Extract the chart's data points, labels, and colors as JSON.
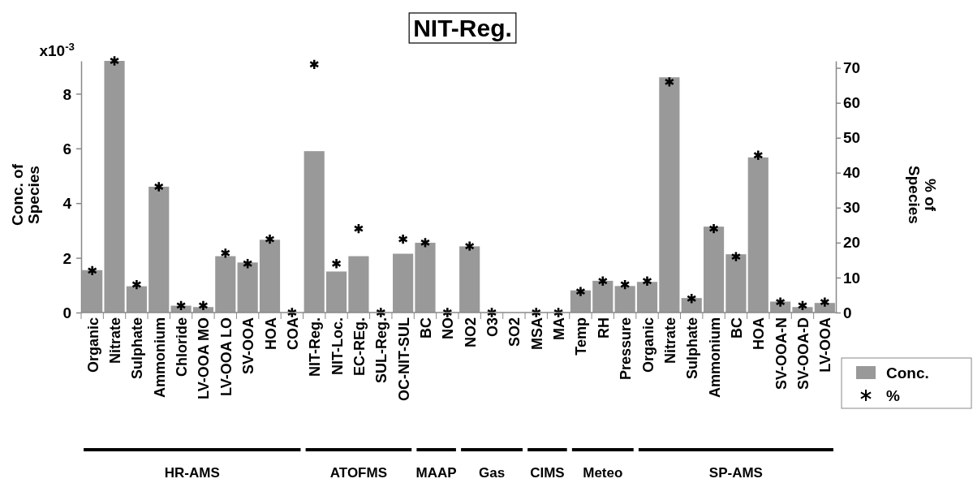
{
  "chart_data": {
    "type": "bar",
    "title": "NIT-Reg.",
    "ylabel": "Conc. of\nSpecies",
    "y2label": "% of\nSpecies",
    "categories": [
      "Organic",
      "Nitrate",
      "Sulphate",
      "Ammonium",
      "Chloride",
      "LV-OOA MO",
      "LV-OOA LO",
      "SV-OOA",
      "HOA",
      "COA",
      "NIT-Reg.",
      "NIT-Loc.",
      "EC-REg.",
      "SUL-Reg.",
      "OC-NIT-SUL",
      "BC",
      "NO",
      "NO2",
      "O3",
      "SO2",
      "MSA",
      "MA",
      "Temp",
      "RH",
      "Pressure",
      "Organic",
      "Nitrate",
      "Sulphate",
      "Ammonium",
      "BC",
      "HOA",
      "SV-OOA-N",
      "SV-OOA-D",
      "LV-OOA"
    ],
    "series": [
      {
        "name": "Conc.",
        "color": "#999999",
        "values": [
          1.55,
          9.2,
          0.96,
          4.6,
          0.25,
          0.2,
          2.06,
          1.83,
          2.66,
          0,
          5.9,
          1.5,
          2.06,
          0,
          2.15,
          2.55,
          0,
          2.42,
          0,
          0,
          0,
          0,
          0.81,
          1.16,
          0.97,
          1.12,
          8.6,
          0.53,
          3.14,
          2.13,
          5.67,
          0.4,
          0.2,
          0.35
        ]
      },
      {
        "name": "%",
        "type": "scatter",
        "axis": "y2",
        "color": "#000000",
        "marker": "cross",
        "values": [
          12,
          72,
          8,
          36,
          2,
          2,
          17,
          14,
          21,
          0,
          71,
          14,
          24,
          0,
          21,
          20,
          0,
          19,
          0,
          null,
          0,
          0,
          6,
          9,
          8,
          9,
          66,
          4,
          24,
          16,
          45,
          3,
          2,
          3
        ]
      }
    ],
    "ylim": [
      0,
      9.2
    ],
    "yticks": [
      0,
      2,
      4,
      6,
      8
    ],
    "y2lim": [
      0,
      72
    ],
    "y2ticks": [
      0,
      10,
      20,
      30,
      40,
      50,
      60,
      70
    ],
    "legend": "right",
    "annotations": [
      "HR-AMS",
      "ATOFMS",
      "MAAP",
      "Gas",
      "CIMS",
      "Meteo",
      "SP-AMS",
      "x10$^{-3}$"
    ]
  }
}
